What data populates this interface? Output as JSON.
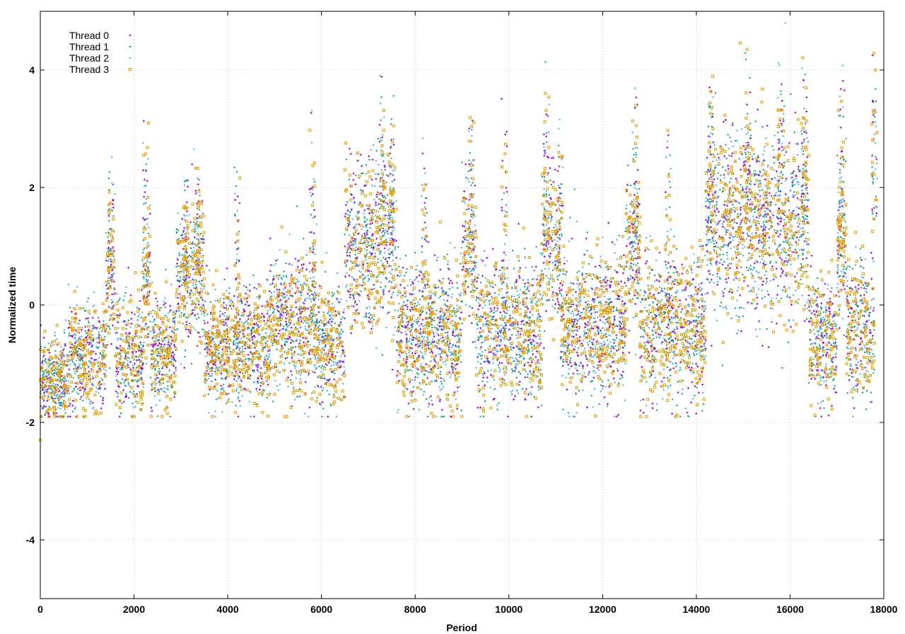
{
  "chart_data": {
    "type": "scatter",
    "title": "",
    "xlabel": "Period",
    "ylabel": "Normalized time",
    "xlim": [
      0,
      18000
    ],
    "ylim": [
      -5,
      5
    ],
    "x_ticks": [
      0,
      2000,
      4000,
      6000,
      8000,
      10000,
      12000,
      14000,
      16000,
      18000
    ],
    "y_ticks": [
      -4,
      -2,
      0,
      2,
      4
    ],
    "grid": true,
    "legend_position": "top-left",
    "series": [
      {
        "name": "Thread 0",
        "color": "#9400d3",
        "marker": "plus"
      },
      {
        "name": "Thread 1",
        "color": "#009e73",
        "marker": "x"
      },
      {
        "name": "Thread 2",
        "color": "#56b4e9",
        "marker": "star"
      },
      {
        "name": "Thread 3",
        "color": "#e69f00",
        "marker": "square"
      }
    ],
    "segments": [
      {
        "x0": 0,
        "x1": 600,
        "mean": -1.3,
        "spread": 0.35
      },
      {
        "x0": 600,
        "x1": 1400,
        "mean": -0.9,
        "spread": 0.45
      },
      {
        "x0": 1400,
        "x1": 1600,
        "mean": 0.4,
        "spread": 0.6
      },
      {
        "x0": 1600,
        "x1": 2200,
        "mean": -0.9,
        "spread": 0.5
      },
      {
        "x0": 2200,
        "x1": 2350,
        "mean": 0.3,
        "spread": 0.6
      },
      {
        "x0": 2350,
        "x1": 2900,
        "mean": -0.8,
        "spread": 0.5
      },
      {
        "x0": 2900,
        "x1": 3500,
        "mean": 0.5,
        "spread": 0.6
      },
      {
        "x0": 3500,
        "x1": 4900,
        "mean": -0.7,
        "spread": 0.5
      },
      {
        "x0": 4900,
        "x1": 5900,
        "mean": -0.3,
        "spread": 0.6
      },
      {
        "x0": 5900,
        "x1": 6500,
        "mean": -0.7,
        "spread": 0.5
      },
      {
        "x0": 6500,
        "x1": 7600,
        "mean": 1.0,
        "spread": 0.7
      },
      {
        "x0": 7600,
        "x1": 9000,
        "mean": -0.5,
        "spread": 0.6
      },
      {
        "x0": 9000,
        "x1": 9300,
        "mean": 0.9,
        "spread": 0.6
      },
      {
        "x0": 9300,
        "x1": 10700,
        "mean": -0.5,
        "spread": 0.6
      },
      {
        "x0": 10700,
        "x1": 11100,
        "mean": 1.0,
        "spread": 0.6
      },
      {
        "x0": 11100,
        "x1": 12500,
        "mean": -0.3,
        "spread": 0.6
      },
      {
        "x0": 12500,
        "x1": 12800,
        "mean": 0.9,
        "spread": 0.6
      },
      {
        "x0": 12800,
        "x1": 14200,
        "mean": -0.4,
        "spread": 0.6
      },
      {
        "x0": 14200,
        "x1": 16400,
        "mean": 1.4,
        "spread": 0.8
      },
      {
        "x0": 16400,
        "x1": 17000,
        "mean": -0.6,
        "spread": 0.5
      },
      {
        "x0": 17000,
        "x1": 17200,
        "mean": 1.0,
        "spread": 0.7
      },
      {
        "x0": 17200,
        "x1": 17800,
        "mean": -0.4,
        "spread": 0.6
      },
      {
        "x0": 17800,
        "x1": 18000,
        "mean": 1.2,
        "spread": 0.7
      }
    ],
    "spikes": [
      {
        "x": 1500,
        "peak": 2.6
      },
      {
        "x": 2250,
        "peak": 3.4
      },
      {
        "x": 3100,
        "peak": 2.4
      },
      {
        "x": 3350,
        "peak": 2.6
      },
      {
        "x": 4200,
        "peak": 2.7
      },
      {
        "x": 5800,
        "peak": 3.7
      },
      {
        "x": 7300,
        "peak": 4.3
      },
      {
        "x": 7500,
        "peak": 3.9
      },
      {
        "x": 8200,
        "peak": 3.2
      },
      {
        "x": 9200,
        "peak": 3.6
      },
      {
        "x": 9900,
        "peak": 3.6
      },
      {
        "x": 10800,
        "peak": 4.2
      },
      {
        "x": 11100,
        "peak": 4.0
      },
      {
        "x": 12700,
        "peak": 4.0
      },
      {
        "x": 13400,
        "peak": 3.5
      },
      {
        "x": 14300,
        "peak": 4.6
      },
      {
        "x": 15100,
        "peak": 4.6
      },
      {
        "x": 15800,
        "peak": 4.8
      },
      {
        "x": 16300,
        "peak": 4.3
      },
      {
        "x": 17100,
        "peak": 4.4
      },
      {
        "x": 17800,
        "peak": 4.6
      }
    ],
    "outlier_low": {
      "x": 0,
      "y": -2.3
    }
  }
}
